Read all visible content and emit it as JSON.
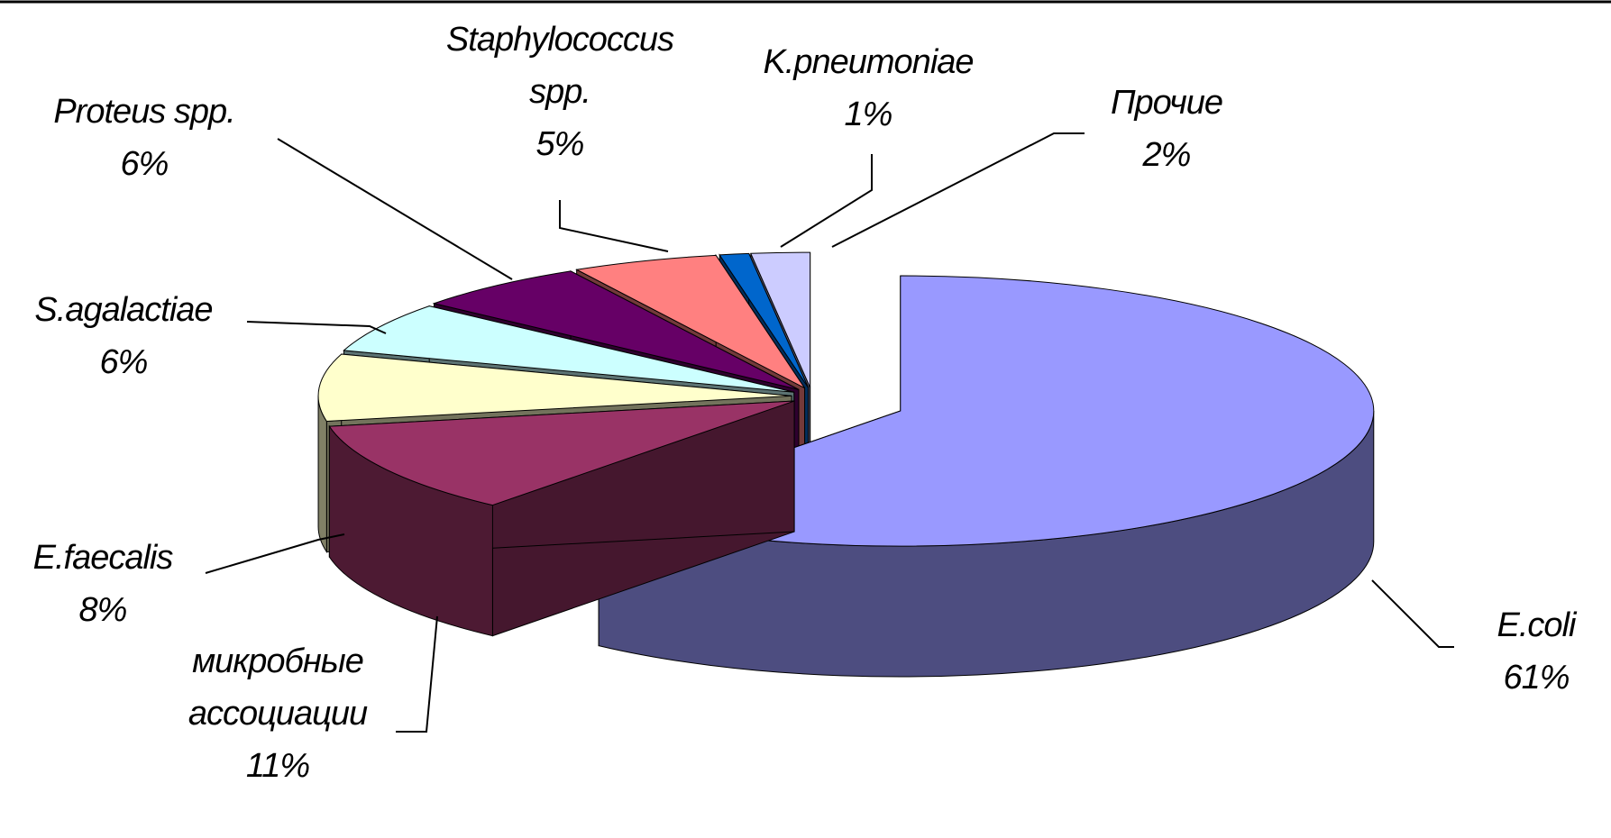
{
  "chart_data": {
    "type": "pie",
    "categories": [
      "E.coli",
      "микробные ассоциации",
      "E.faecalis",
      "S.agalactiae",
      "Proteus spp.",
      "Staphylococcus spp.",
      "K.pneumoniae",
      "Прочие"
    ],
    "values": [
      61,
      11,
      8,
      6,
      6,
      5,
      1,
      2
    ],
    "value_labels": [
      "61%",
      "11%",
      "8%",
      "6%",
      "6%",
      "5%",
      "1%",
      "2%"
    ],
    "colors": [
      "#9999ff",
      "#993366",
      "#ffffcc",
      "#ccffff",
      "#660066",
      "#ff8080",
      "#0066cc",
      "#ccccff"
    ]
  }
}
